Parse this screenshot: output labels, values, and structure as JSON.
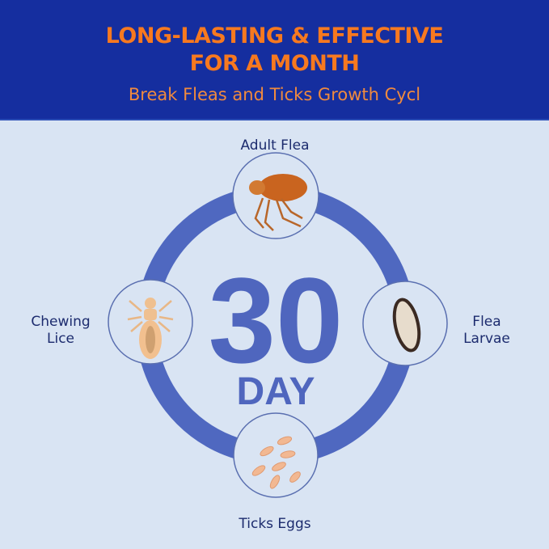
{
  "header": {
    "title_line1": "LONG-LASTING & EFFECTIVE",
    "title_line2": "FOR A MONTH",
    "subtitle": "Break Fleas and Ticks Growth Cycl"
  },
  "center": {
    "number": "30",
    "unit": "DAY"
  },
  "stages": {
    "top": {
      "label": "Adult Flea",
      "icon": "adult-flea-icon"
    },
    "right": {
      "label_line1": "Flea",
      "label_line2": "Larvae",
      "icon": "flea-larva-icon"
    },
    "bottom": {
      "label": "Ticks Eggs",
      "icon": "eggs-icon"
    },
    "left": {
      "label_line1": "Chewing",
      "label_line2": "Lice",
      "icon": "louse-icon"
    }
  },
  "colors": {
    "header_bg": "#152e9f",
    "title": "#f7791f",
    "ring": "#4f68c0",
    "background": "#d9e4f3"
  }
}
